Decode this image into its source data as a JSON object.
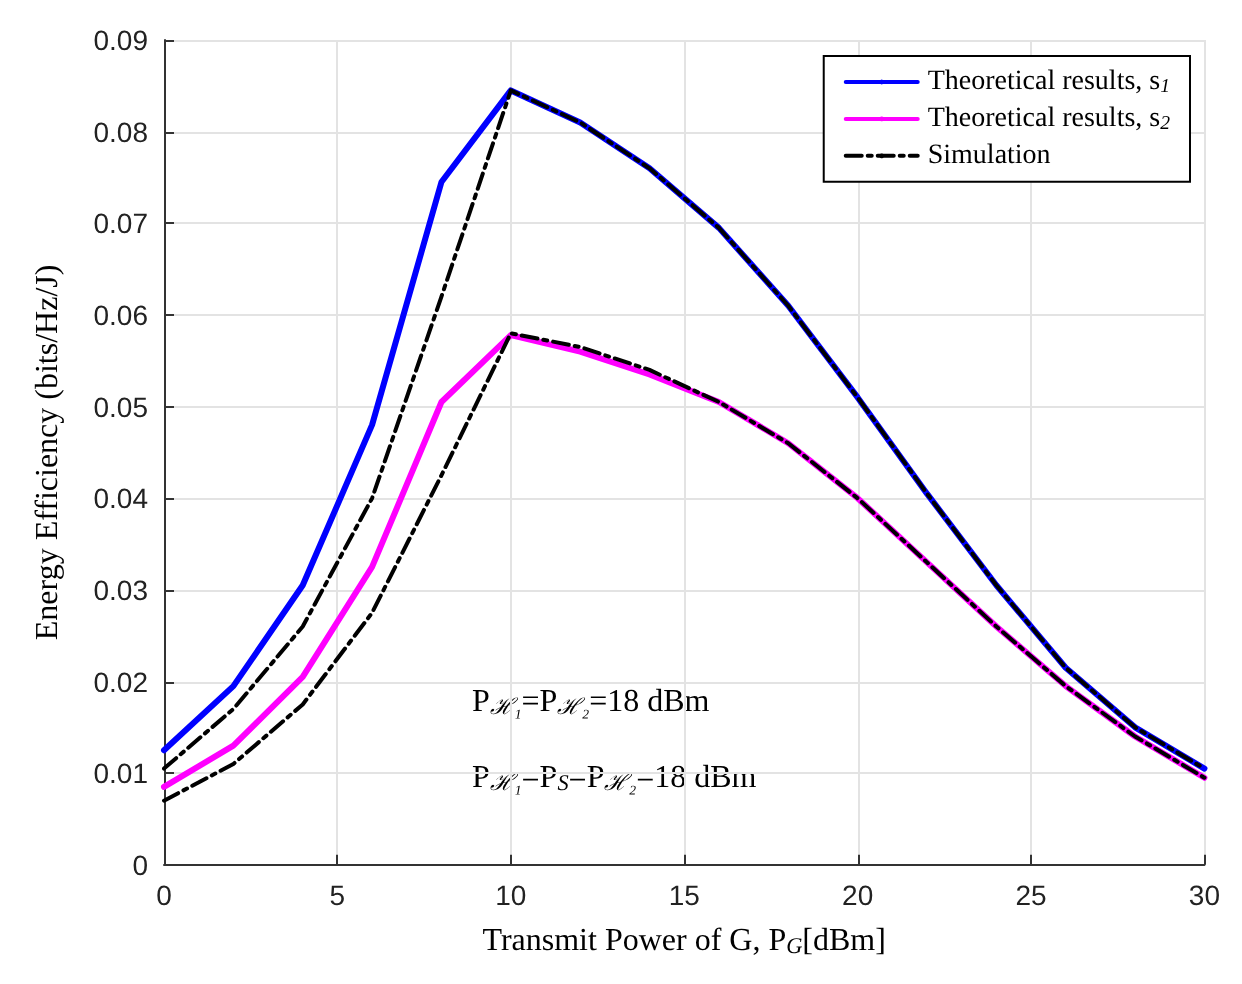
{
  "chart_data": {
    "type": "line",
    "xlabel": "Transmit Power of G, P$_{G}$[dBm]",
    "ylabel": "Energy Efficiency (bits/Hz/J)",
    "x": [
      0,
      2,
      4,
      6,
      8,
      10,
      12,
      14,
      16,
      18,
      20,
      22,
      24,
      26,
      28,
      30
    ],
    "series": [
      {
        "name": "Theoretical results, s$_{1}$",
        "color": "#0000ff",
        "line_style": "solid",
        "values": [
          0.0125,
          0.0195,
          0.0305,
          0.048,
          0.0745,
          0.0845,
          0.081,
          0.076,
          0.0695,
          0.061,
          0.051,
          0.0405,
          0.0305,
          0.0215,
          0.015,
          0.0105
        ]
      },
      {
        "name": "Theoretical results, s$_{2}$",
        "color": "#ff00ff",
        "line_style": "solid",
        "values": [
          0.0085,
          0.013,
          0.0205,
          0.0325,
          0.0505,
          0.0578,
          0.056,
          0.0535,
          0.0505,
          0.046,
          0.04,
          0.033,
          0.026,
          0.0195,
          0.014,
          0.0095
        ]
      },
      {
        "name": "Simulation",
        "color": "#000000",
        "line_style": "dashed",
        "values": [
          0.0105,
          0.017,
          0.026,
          0.04,
          0.062,
          0.0845,
          0.081,
          0.076,
          0.0695,
          0.061,
          0.051,
          0.0405,
          0.0305,
          0.0215,
          0.015,
          0.0105
        ]
      },
      {
        "color": "#000000",
        "line_style": "dashed",
        "values": [
          0.007,
          0.011,
          0.0175,
          0.0275,
          0.0425,
          0.058,
          0.0565,
          0.054,
          0.0505,
          0.046,
          0.04,
          0.033,
          0.026,
          0.0195,
          0.014,
          0.0095
        ]
      }
    ],
    "xlim": [
      0,
      30
    ],
    "xticks": [
      0,
      5,
      10,
      15,
      20,
      25,
      30
    ],
    "ylim": [
      0,
      0.09
    ],
    "yticks": [
      0,
      0.01,
      0.02,
      0.03,
      0.04,
      0.05,
      0.06,
      0.07,
      0.08,
      0.09
    ],
    "grid": true,
    "legend": "top right",
    "marker": "none",
    "annotations": [
      "P$_{ℋ₁}$=P$_{ℋ₂}$=18 dBm",
      "P$_{ℋ₁}$=P$_{S}$=P$_{ℋ₂}$=18 dBm"
    ]
  }
}
